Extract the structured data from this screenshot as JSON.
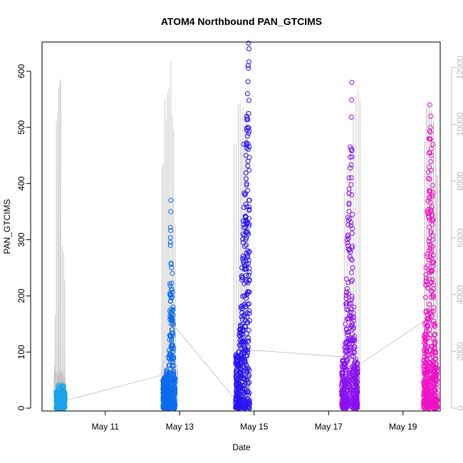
{
  "chart_data": {
    "type": "scatter",
    "title": "ATOM4 Northbound PAN_GTCIMS",
    "xlabel": "Date",
    "ylabel": "PAN_GTCIMS",
    "x_ticks": [
      "May 11",
      "May 13",
      "May 15",
      "May 17",
      "May 19"
    ],
    "x_tick_days": [
      11,
      13,
      15,
      17,
      19
    ],
    "xlim_days": [
      9.3,
      20.0
    ],
    "ylim": [
      -5,
      652
    ],
    "y_ticks": [
      0,
      100,
      200,
      300,
      400,
      500,
      600
    ],
    "y2_ticks": [
      0,
      2000,
      4000,
      6000,
      8000,
      10000,
      12000
    ],
    "y2lim": [
      -100,
      12900
    ],
    "grid": false,
    "legend": "none",
    "series": [
      {
        "color": "#1aa3e8",
        "day_range": [
          9.68,
          9.92
        ],
        "values": [
          [
            9.68,
            30
          ],
          [
            9.7,
            12
          ],
          [
            9.71,
            25
          ],
          [
            9.73,
            40
          ],
          [
            9.74,
            8
          ],
          [
            9.76,
            35
          ],
          [
            9.77,
            20
          ],
          [
            9.79,
            42
          ],
          [
            9.8,
            15
          ],
          [
            9.82,
            30
          ],
          [
            9.83,
            10
          ],
          [
            9.85,
            38
          ],
          [
            9.86,
            22
          ],
          [
            9.88,
            40
          ],
          [
            9.89,
            12
          ],
          [
            9.91,
            28
          ]
        ]
      },
      {
        "color": "#0a6cf0",
        "day_range": [
          12.55,
          12.88
        ],
        "values": [
          [
            12.56,
            20
          ],
          [
            12.59,
            50
          ],
          [
            12.62,
            35
          ],
          [
            12.65,
            68
          ],
          [
            12.68,
            15
          ],
          [
            12.71,
            90
          ],
          [
            12.73,
            130
          ],
          [
            12.75,
            170
          ],
          [
            12.77,
            210
          ],
          [
            12.79,
            140
          ],
          [
            12.81,
            100
          ],
          [
            12.84,
            60
          ],
          [
            12.86,
            30
          ],
          [
            12.76,
            370
          ],
          [
            12.76,
            350
          ],
          [
            12.75,
            322
          ],
          [
            12.75,
            290
          ],
          [
            12.78,
            250
          ],
          [
            12.8,
            240
          ],
          [
            12.82,
            180
          ]
        ]
      },
      {
        "color": "#2a14f0",
        "day_range": [
          14.5,
          14.88
        ],
        "values": [
          [
            14.52,
            30
          ],
          [
            14.55,
            60
          ],
          [
            14.58,
            100
          ],
          [
            14.61,
            140
          ],
          [
            14.64,
            180
          ],
          [
            14.67,
            250
          ],
          [
            14.7,
            310
          ],
          [
            14.72,
            470
          ],
          [
            14.75,
            380
          ],
          [
            14.78,
            450
          ],
          [
            14.8,
            520
          ],
          [
            14.82,
            560
          ],
          [
            14.84,
            610
          ],
          [
            14.85,
            650
          ],
          [
            14.86,
            640
          ],
          [
            14.83,
            500
          ],
          [
            14.8,
            400
          ],
          [
            14.77,
            300
          ],
          [
            14.74,
            200
          ],
          [
            14.7,
            120
          ],
          [
            14.65,
            70
          ],
          [
            14.6,
            40
          ],
          [
            14.56,
            20
          ]
        ]
      },
      {
        "color": "#8a10f2",
        "day_range": [
          17.35,
          17.78
        ],
        "values": [
          [
            17.38,
            20
          ],
          [
            17.42,
            80
          ],
          [
            17.45,
            150
          ],
          [
            17.48,
            230
          ],
          [
            17.5,
            300
          ],
          [
            17.52,
            340
          ],
          [
            17.55,
            410
          ],
          [
            17.58,
            465
          ],
          [
            17.62,
            380
          ],
          [
            17.65,
            250
          ],
          [
            17.68,
            180
          ],
          [
            17.7,
            120
          ],
          [
            17.72,
            70
          ],
          [
            17.75,
            30
          ],
          [
            17.62,
            580
          ],
          [
            17.64,
            320
          ]
        ]
      },
      {
        "color": "#f010c8",
        "day_range": [
          19.55,
          19.92
        ],
        "values": [
          [
            19.58,
            150
          ],
          [
            19.62,
            250
          ],
          [
            19.65,
            350
          ],
          [
            19.68,
            420
          ],
          [
            19.7,
            480
          ],
          [
            19.72,
            540
          ],
          [
            19.74,
            500
          ],
          [
            19.76,
            450
          ],
          [
            19.78,
            380
          ],
          [
            19.8,
            300
          ],
          [
            19.82,
            220
          ],
          [
            19.85,
            150
          ],
          [
            19.88,
            100
          ],
          [
            19.9,
            60
          ],
          [
            19.75,
            520
          ],
          [
            19.8,
            470
          ]
        ]
      }
    ],
    "secondary_series": {
      "color": "#c0c0c0",
      "axis": "right",
      "connectors": [
        [
          9.96,
          280
        ],
        [
          12.48,
          1150
        ],
        [
          12.85,
          2900
        ],
        [
          14.5,
          300
        ],
        [
          14.9,
          2050
        ],
        [
          17.45,
          1800
        ],
        [
          17.78,
          1500
        ],
        [
          19.6,
          3100
        ]
      ],
      "spike_clusters": [
        {
          "day_range": [
            9.62,
            9.93
          ],
          "peaks": [
            [
              9.65,
              3300
            ],
            [
              9.68,
              10100
            ],
            [
              9.72,
              10400
            ],
            [
              9.75,
              11300
            ],
            [
              9.78,
              11500
            ],
            [
              9.8,
              11600
            ],
            [
              9.84,
              5700
            ],
            [
              9.88,
              5500
            ],
            [
              9.91,
              4500
            ]
          ]
        },
        {
          "day_range": [
            12.5,
            12.95
          ],
          "peaks": [
            [
              12.52,
              8500
            ],
            [
              12.56,
              8600
            ],
            [
              12.6,
              10900
            ],
            [
              12.64,
              10200
            ],
            [
              12.68,
              11100
            ],
            [
              12.72,
              11300
            ],
            [
              12.76,
              12200
            ],
            [
              12.8,
              10300
            ],
            [
              12.84,
              9800
            ],
            [
              12.88,
              6500
            ]
          ]
        },
        {
          "day_range": [
            14.45,
            14.9
          ],
          "peaks": [
            [
              14.46,
              9300
            ],
            [
              14.52,
              9300
            ],
            [
              14.58,
              10700
            ],
            [
              14.62,
              10800
            ],
            [
              14.66,
              9400
            ],
            [
              14.7,
              10600
            ],
            [
              14.74,
              9200
            ],
            [
              14.78,
              10500
            ],
            [
              14.82,
              9500
            ],
            [
              14.86,
              6200
            ]
          ]
        },
        {
          "day_range": [
            17.4,
            17.85
          ],
          "peaks": [
            [
              17.42,
              7600
            ],
            [
              17.5,
              8600
            ],
            [
              17.58,
              9000
            ],
            [
              17.66,
              10200
            ],
            [
              17.74,
              11000
            ],
            [
              17.8,
              11200
            ],
            [
              17.84,
              10900
            ]
          ]
        },
        {
          "day_range": [
            19.55,
            19.95
          ],
          "peaks": [
            [
              19.58,
              9400
            ],
            [
              19.64,
              10600
            ],
            [
              19.7,
              10800
            ],
            [
              19.76,
              10500
            ],
            [
              19.82,
              10100
            ],
            [
              19.88,
              9300
            ],
            [
              19.92,
              8200
            ]
          ]
        }
      ]
    }
  }
}
